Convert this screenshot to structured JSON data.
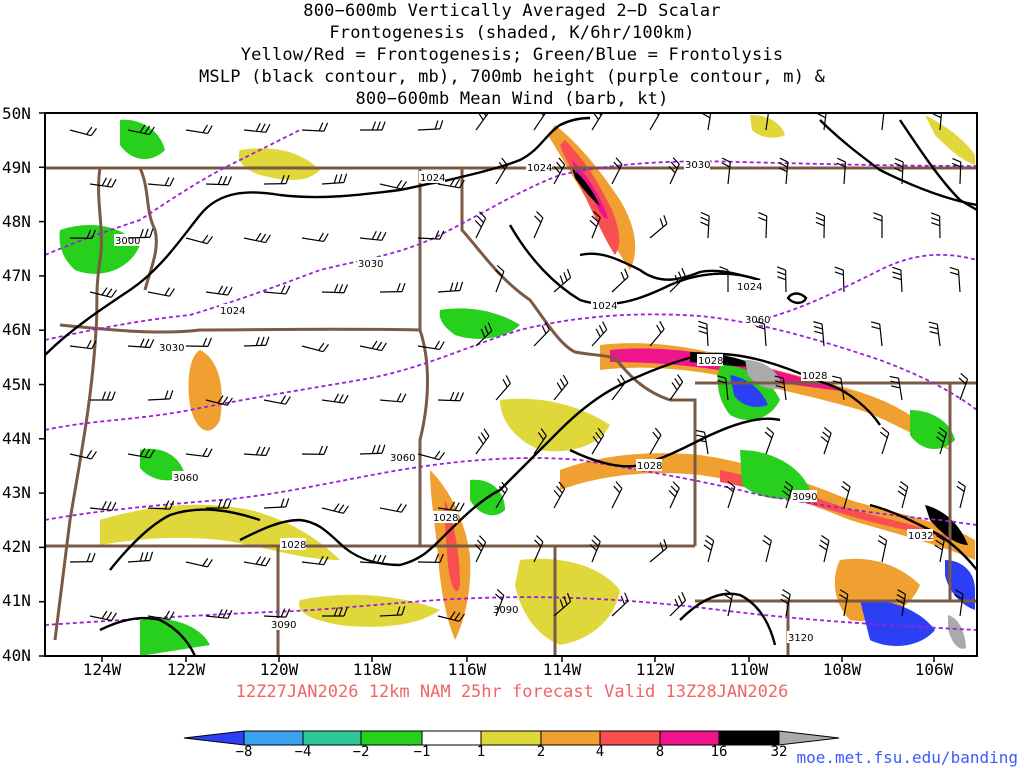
{
  "title_lines": [
    "800−600mb Vertically Averaged 2−D Scalar",
    "Frontogenesis (shaded, K/6hr/100km)",
    "Yellow/Red = Frontogenesis;  Green/Blue = Frontolysis",
    "MSLP (black contour, mb), 700mb height (purple contour, m) &",
    "800−600mb Mean Wind (barb, kt)"
  ],
  "lat_labels": [
    "50N",
    "49N",
    "48N",
    "47N",
    "46N",
    "45N",
    "44N",
    "43N",
    "42N",
    "41N",
    "40N"
  ],
  "lon_labels": [
    "124W",
    "122W",
    "120W",
    "118W",
    "116W",
    "114W",
    "112W",
    "110W",
    "108W",
    "106W"
  ],
  "valid_line": "12Z27JAN2026 12km NAM 25hr forecast Valid 13Z28JAN2026",
  "colorbar": {
    "labels": [
      "−8",
      "−4",
      "−2",
      "−1",
      "1",
      "2",
      "4",
      "8",
      "16",
      "32"
    ],
    "colors": [
      "#2b3ff5",
      "#3aa0f0",
      "#2fc79a",
      "#33cc66",
      "#28d01e",
      "#ffffff",
      "#e0d83a",
      "#f0a030",
      "#f85050",
      "#f0148c",
      "#000000",
      "#aaaaaa"
    ]
  },
  "mslp_labels": [
    "1024",
    "1024",
    "1024",
    "1024",
    "1024",
    "1028",
    "1028",
    "1028",
    "1028",
    "1028",
    "1032"
  ],
  "height_labels": [
    "3000",
    "3030",
    "3030",
    "3030",
    "3060",
    "3060",
    "3060",
    "3090",
    "3090",
    "3090",
    "3120"
  ],
  "credit": "moe.met.fsu.edu/banding",
  "colors": {
    "mslp": "#000000",
    "height": "#9b1fd6",
    "border": "#7a5a44",
    "frontogenesis_weak": "#e0d83a",
    "frontogenesis_mod": "#f0a030",
    "frontogenesis_strong": "#f85050",
    "frontogenesis_max": "#f0148c",
    "frontolysis": "#28d01e",
    "frontolysis_strong": "#2b3ff5"
  }
}
